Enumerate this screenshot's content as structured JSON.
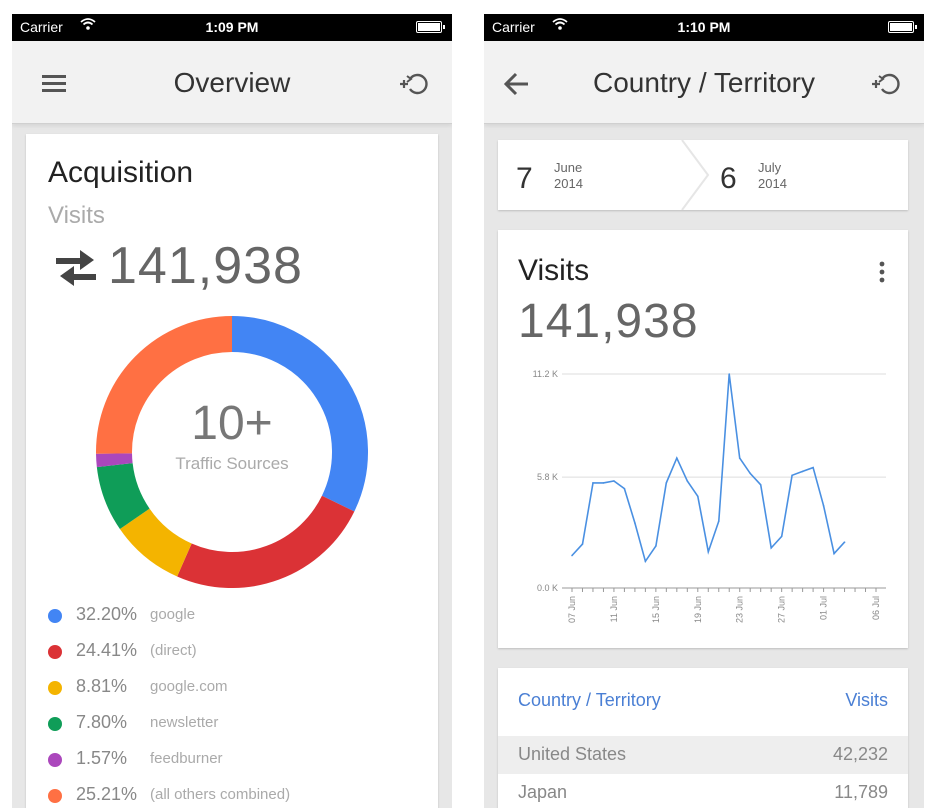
{
  "left_screen": {
    "status": {
      "carrier": "Carrier",
      "time": "1:09 PM"
    },
    "appbar": {
      "title": "Overview",
      "menu_icon": "hamburger-menu-icon",
      "action_icon": "add-segment-icon"
    },
    "card": {
      "title": "Acquisition",
      "subtitle": "Visits",
      "total": "141,938",
      "donut_center": "10+",
      "donut_label": "Traffic Sources"
    },
    "legend": [
      {
        "pct": "32.20%",
        "name": "google",
        "color": "#4285f4"
      },
      {
        "pct": "24.41%",
        "name": "(direct)",
        "color": "#db3236"
      },
      {
        "pct": "8.81%",
        "name": "google.com",
        "color": "#f4b400"
      },
      {
        "pct": "7.80%",
        "name": "newsletter",
        "color": "#0f9d58"
      },
      {
        "pct": "1.57%",
        "name": "feedburner",
        "color": "#ab47bc"
      },
      {
        "pct": "25.21%",
        "name": "(all others combined)",
        "color": "#ff7043"
      }
    ]
  },
  "right_screen": {
    "status": {
      "carrier": "Carrier",
      "time": "1:10 PM"
    },
    "appbar": {
      "title": "Country / Territory",
      "back_icon": "back-arrow-icon",
      "action_icon": "add-segment-icon"
    },
    "date_range": {
      "start": {
        "day": "7",
        "month": "June",
        "year": "2014"
      },
      "end": {
        "day": "6",
        "month": "July",
        "year": "2014"
      }
    },
    "visits_card": {
      "title": "Visits",
      "total": "141,938",
      "menu_icon": "more-vert-icon"
    },
    "table": {
      "header": {
        "dimension": "Country / Territory",
        "metric": "Visits"
      },
      "rows": [
        {
          "name": "United States",
          "value": "42,232"
        },
        {
          "name": "Japan",
          "value": "11,789"
        }
      ]
    }
  },
  "chart_data": {
    "type": "line",
    "x": [
      "07 Jun",
      "08 Jun",
      "09 Jun",
      "10 Jun",
      "11 Jun",
      "12 Jun",
      "13 Jun",
      "14 Jun",
      "15 Jun",
      "16 Jun",
      "17 Jun",
      "18 Jun",
      "19 Jun",
      "20 Jun",
      "21 Jun",
      "22 Jun",
      "23 Jun",
      "24 Jun",
      "25 Jun",
      "26 Jun",
      "27 Jun",
      "28 Jun",
      "29 Jun",
      "30 Jun",
      "01 Jul",
      "02 Jul",
      "03 Jul",
      "04 Jul",
      "05 Jul",
      "06 Jul"
    ],
    "x_tick_labels": [
      "07 Jun",
      "11 Jun",
      "15 Jun",
      "19 Jun",
      "23 Jun",
      "27 Jun",
      "01 Jul",
      "06 Jul"
    ],
    "series": [
      {
        "values": [
          1.7,
          2.3,
          5.5,
          5.5,
          5.6,
          5.2,
          3.4,
          1.4,
          2.2,
          5.5,
          6.8,
          5.6,
          4.8,
          1.9,
          3.5,
          11.2,
          6.8,
          6.0,
          5.4,
          2.1,
          2.7,
          5.9,
          6.1,
          6.3,
          4.3,
          1.8,
          2.4,
          null,
          null,
          null
        ]
      }
    ],
    "y_ticks": [
      "0.0 K",
      "5.8 K",
      "11.2 K"
    ],
    "ylim": [
      0,
      11.2
    ],
    "color": "#4a90e2",
    "grid": true
  }
}
